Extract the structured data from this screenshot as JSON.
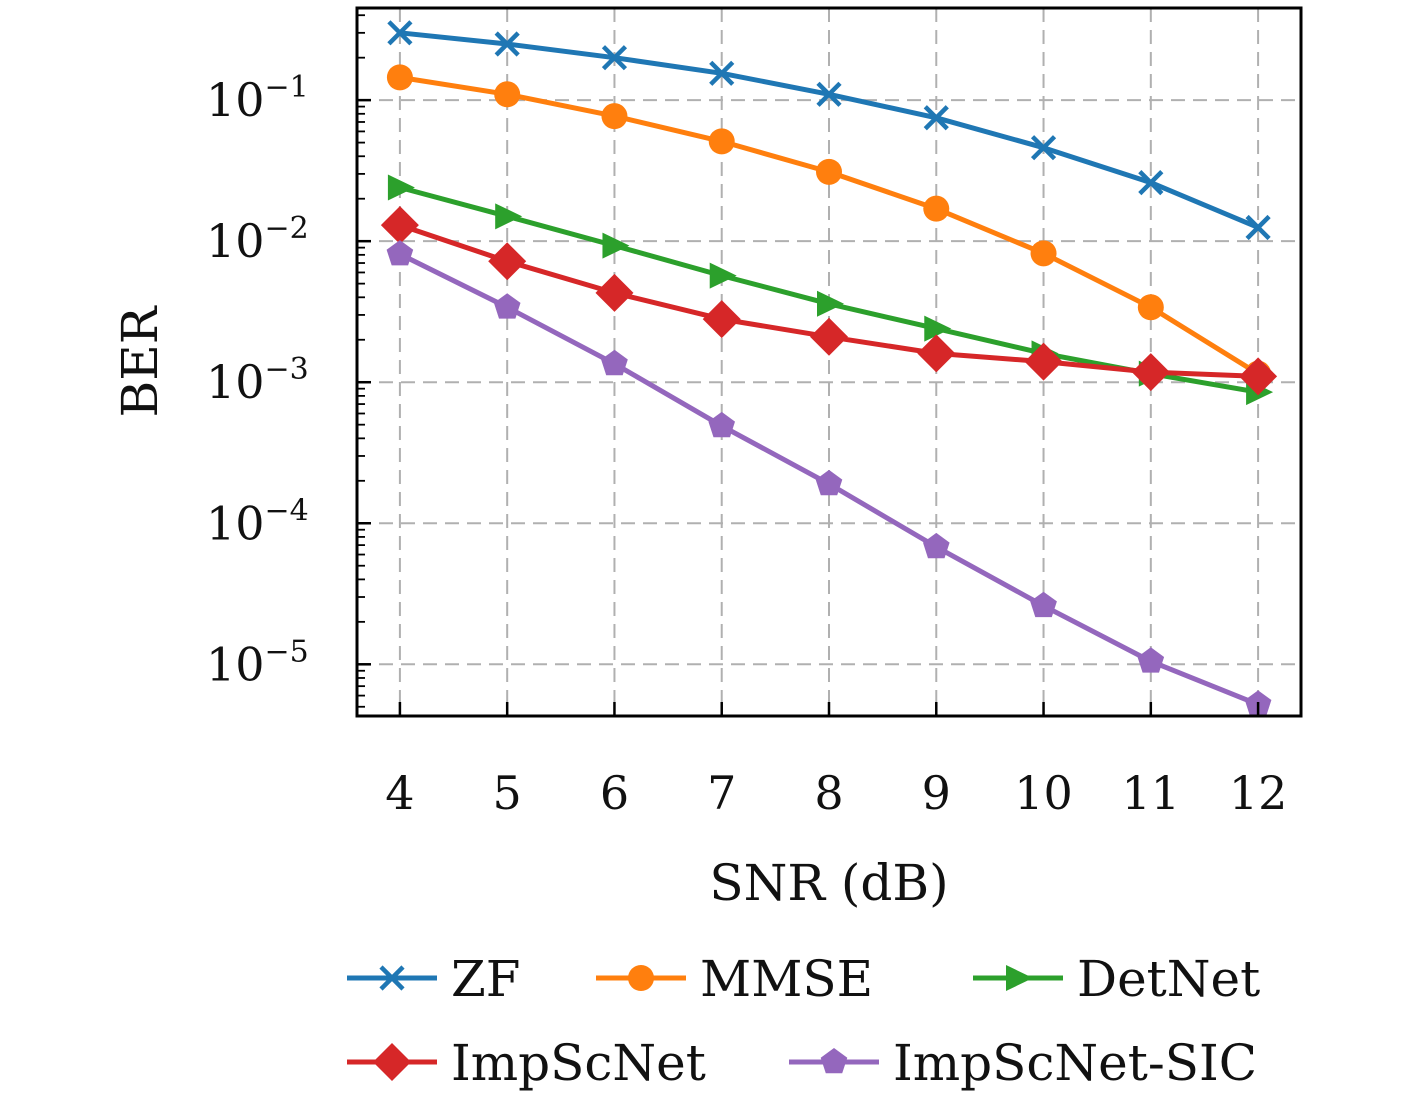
{
  "chart_data": {
    "type": "line",
    "xlabel": "SNR (dB)",
    "ylabel": "BER",
    "x": [
      4,
      5,
      6,
      7,
      8,
      9,
      10,
      11,
      12
    ],
    "xlim": [
      3.6,
      12.4
    ],
    "ylim": [
      4.3e-06,
      0.45
    ],
    "yscale": "log",
    "grid": true,
    "legend_position": "bottom",
    "y_ticks": [
      {
        "value": 0.1,
        "base": "10",
        "exp": "−1"
      },
      {
        "value": 0.01,
        "base": "10",
        "exp": "−2"
      },
      {
        "value": 0.001,
        "base": "10",
        "exp": "−3"
      },
      {
        "value": 0.0001,
        "base": "10",
        "exp": "−4"
      },
      {
        "value": 1e-05,
        "base": "10",
        "exp": "−5"
      }
    ],
    "series": [
      {
        "name": "ZF",
        "color": "#1f77b4",
        "marker": "x",
        "values": [
          0.3,
          0.25,
          0.2,
          0.155,
          0.11,
          0.075,
          0.046,
          0.026,
          0.0125
        ]
      },
      {
        "name": "MMSE",
        "color": "#ff7f0e",
        "marker": "circle",
        "values": [
          0.145,
          0.11,
          0.077,
          0.051,
          0.031,
          0.017,
          0.0082,
          0.0034,
          0.00115
        ]
      },
      {
        "name": "DetNet",
        "color": "#2ca02c",
        "marker": "triangle-right",
        "values": [
          0.024,
          0.015,
          0.0093,
          0.0057,
          0.0036,
          0.0024,
          0.0016,
          0.00115,
          0.00085
        ]
      },
      {
        "name": "ImpScNet",
        "color": "#d62728",
        "marker": "diamond",
        "values": [
          0.013,
          0.0072,
          0.0043,
          0.0028,
          0.0021,
          0.0016,
          0.0014,
          0.00118,
          0.0011
        ]
      },
      {
        "name": "ImpScNet-SIC",
        "color": "#9467bd",
        "marker": "pentagon",
        "values": [
          0.0081,
          0.0034,
          0.00135,
          0.00049,
          0.00019,
          6.8e-05,
          2.6e-05,
          1.05e-05,
          5.2e-06
        ]
      }
    ]
  }
}
